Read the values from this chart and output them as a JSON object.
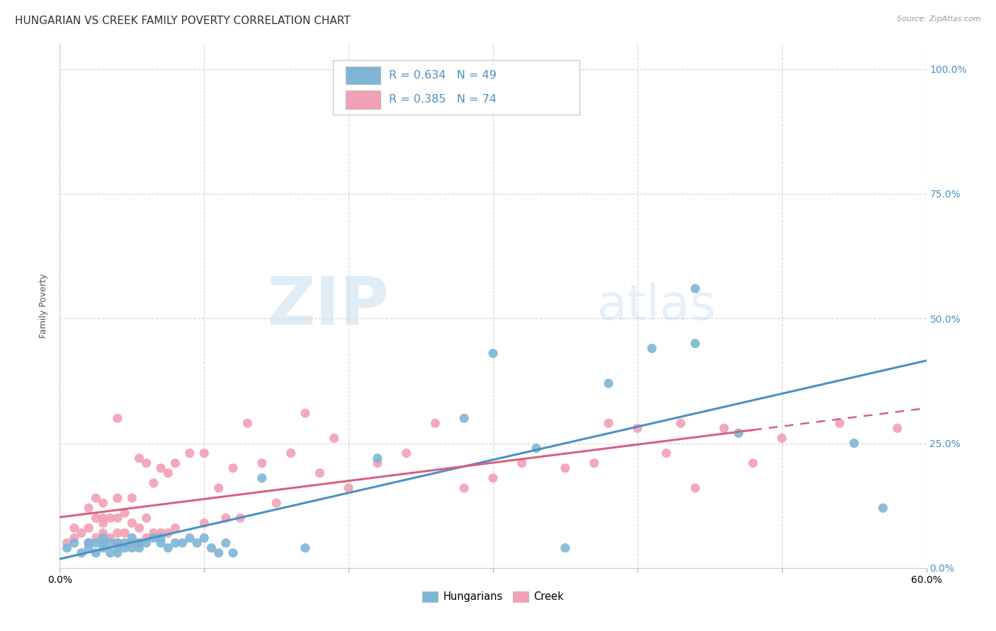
{
  "title": "HUNGARIAN VS CREEK FAMILY POVERTY CORRELATION CHART",
  "source": "Source: ZipAtlas.com",
  "ylabel": "Family Poverty",
  "ylabel_ticks": [
    "0.0%",
    "25.0%",
    "50.0%",
    "75.0%",
    "100.0%"
  ],
  "xlim": [
    0.0,
    0.6
  ],
  "ylim": [
    0.0,
    1.05
  ],
  "yticks": [
    0.0,
    0.25,
    0.5,
    0.75,
    1.0
  ],
  "xticks": [
    0.0,
    0.1,
    0.2,
    0.3,
    0.4,
    0.5,
    0.6
  ],
  "legend_labels": [
    "Hungarians",
    "Creek"
  ],
  "hungarian_color": "#7eb5d6",
  "creek_color": "#f2a0b5",
  "hungarian_line_color": "#4a90c4",
  "creek_line_color": "#d96080",
  "hungarian_R": "0.634",
  "hungarian_N": "49",
  "creek_R": "0.385",
  "creek_N": "74",
  "watermark_zip": "ZIP",
  "watermark_atlas": "atlas",
  "background_color": "#ffffff",
  "grid_color": "#d5d5d5",
  "title_fontsize": 11,
  "axis_label_fontsize": 9,
  "tick_fontsize": 10,
  "right_tick_color": "#4a90c4",
  "hungarian_scatter_x": [
    0.005,
    0.01,
    0.015,
    0.02,
    0.02,
    0.025,
    0.025,
    0.03,
    0.03,
    0.03,
    0.035,
    0.035,
    0.04,
    0.04,
    0.04,
    0.045,
    0.045,
    0.05,
    0.05,
    0.055,
    0.055,
    0.06,
    0.065,
    0.07,
    0.07,
    0.075,
    0.08,
    0.085,
    0.09,
    0.095,
    0.1,
    0.105,
    0.11,
    0.115,
    0.12,
    0.14,
    0.17,
    0.22,
    0.28,
    0.3,
    0.33,
    0.35,
    0.38,
    0.41,
    0.44,
    0.44,
    0.47,
    0.55,
    0.57
  ],
  "hungarian_scatter_y": [
    0.04,
    0.05,
    0.03,
    0.04,
    0.05,
    0.03,
    0.05,
    0.04,
    0.05,
    0.06,
    0.03,
    0.05,
    0.04,
    0.05,
    0.03,
    0.05,
    0.04,
    0.04,
    0.06,
    0.04,
    0.05,
    0.05,
    0.06,
    0.05,
    0.06,
    0.04,
    0.05,
    0.05,
    0.06,
    0.05,
    0.06,
    0.04,
    0.03,
    0.05,
    0.03,
    0.18,
    0.04,
    0.22,
    0.3,
    0.43,
    0.24,
    0.04,
    0.37,
    0.44,
    0.56,
    0.45,
    0.27,
    0.25,
    0.12
  ],
  "creek_scatter_x": [
    0.005,
    0.01,
    0.01,
    0.015,
    0.02,
    0.02,
    0.02,
    0.025,
    0.025,
    0.025,
    0.03,
    0.03,
    0.03,
    0.03,
    0.03,
    0.035,
    0.035,
    0.04,
    0.04,
    0.04,
    0.04,
    0.04,
    0.045,
    0.045,
    0.05,
    0.05,
    0.05,
    0.055,
    0.055,
    0.055,
    0.06,
    0.06,
    0.06,
    0.065,
    0.065,
    0.07,
    0.07,
    0.075,
    0.075,
    0.08,
    0.08,
    0.09,
    0.1,
    0.1,
    0.11,
    0.115,
    0.12,
    0.125,
    0.13,
    0.14,
    0.15,
    0.16,
    0.17,
    0.18,
    0.19,
    0.2,
    0.22,
    0.24,
    0.26,
    0.28,
    0.3,
    0.32,
    0.35,
    0.37,
    0.38,
    0.4,
    0.42,
    0.43,
    0.44,
    0.46,
    0.48,
    0.5,
    0.54,
    0.58
  ],
  "creek_scatter_y": [
    0.05,
    0.06,
    0.08,
    0.07,
    0.05,
    0.08,
    0.12,
    0.06,
    0.1,
    0.14,
    0.05,
    0.07,
    0.09,
    0.1,
    0.13,
    0.06,
    0.1,
    0.05,
    0.07,
    0.1,
    0.14,
    0.3,
    0.07,
    0.11,
    0.05,
    0.09,
    0.14,
    0.05,
    0.08,
    0.22,
    0.06,
    0.1,
    0.21,
    0.07,
    0.17,
    0.07,
    0.2,
    0.07,
    0.19,
    0.08,
    0.21,
    0.23,
    0.09,
    0.23,
    0.16,
    0.1,
    0.2,
    0.1,
    0.29,
    0.21,
    0.13,
    0.23,
    0.31,
    0.19,
    0.26,
    0.16,
    0.21,
    0.23,
    0.29,
    0.16,
    0.18,
    0.21,
    0.2,
    0.21,
    0.29,
    0.28,
    0.23,
    0.29,
    0.16,
    0.28,
    0.21,
    0.26,
    0.29,
    0.28
  ]
}
